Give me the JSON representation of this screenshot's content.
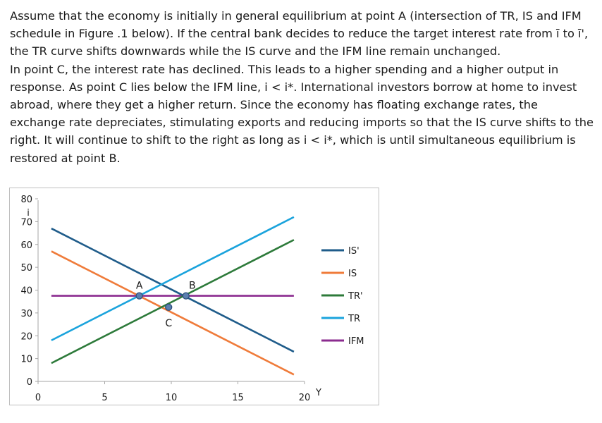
{
  "paragraphs": [
    "Assume that the economy is initially in general equilibrium at point A (intersection of TR, IS and IFM schedule in Figure .1 below). If the central bank decides to reduce the target interest rate from ī to ī', the TR curve shifts downwards while the IS curve and the IFM line remain unchanged.",
    "In point C, the interest rate has declined. This leads to a higher spending and a higher output in response. As point C lies below the IFM line, i < i*. International investors borrow at home to invest abroad, where they get a higher return. Since the economy has floating exchange rates, the exchange rate depreciates, stimulating exports and reducing imports so that the IS curve shifts to the right. It will continue to shift to the right as long as i < i*, which is until simultaneous equilibrium is restored at point B."
  ],
  "chart_data": {
    "type": "line",
    "title": "",
    "xlabel": "Y",
    "ylabel": "i",
    "xlim": [
      0,
      20
    ],
    "ylim": [
      0,
      80
    ],
    "x_ticks": [
      0,
      5,
      10,
      15,
      20
    ],
    "y_ticks": [
      0,
      10,
      20,
      30,
      40,
      50,
      60,
      70,
      80
    ],
    "grid": false,
    "legend_position": "right",
    "series": [
      {
        "name": "IS'",
        "color": "#1f5c8a",
        "x": [
          1,
          19.2
        ],
        "y": [
          67,
          13
        ]
      },
      {
        "name": "IS",
        "color": "#ef7b3a",
        "x": [
          1,
          19.2
        ],
        "y": [
          57,
          3
        ]
      },
      {
        "name": "TR'",
        "color": "#2d7a3a",
        "x": [
          1,
          19.2
        ],
        "y": [
          8,
          62
        ]
      },
      {
        "name": "TR",
        "color": "#1aa3dc",
        "x": [
          1,
          19.2
        ],
        "y": [
          18,
          72
        ]
      },
      {
        "name": "IFM",
        "color": "#8b2c8f",
        "x": [
          1,
          19.2
        ],
        "y": [
          37.5,
          37.5
        ]
      }
    ],
    "points": [
      {
        "label": "A",
        "x": 7.6,
        "y": 37.5
      },
      {
        "label": "B",
        "x": 11.1,
        "y": 37.5
      },
      {
        "label": "C",
        "x": 9.8,
        "y": 32.5
      }
    ]
  }
}
